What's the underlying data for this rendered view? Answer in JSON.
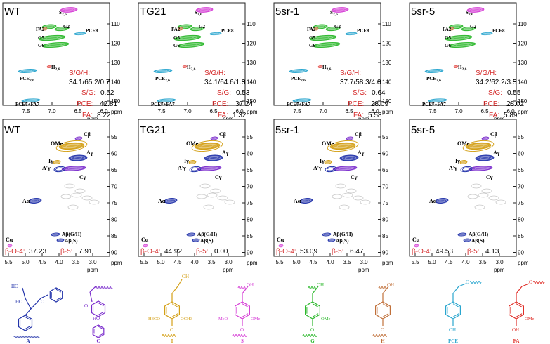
{
  "colors": {
    "s": "#d63fd6",
    "g": "#2db82d",
    "pce": "#2aa6cf",
    "h": "#e0302a",
    "fa": "#c0703a",
    "a": "#2233aa",
    "b": "#7a2ccc",
    "i": "#d4a017",
    "stat": "#d52b2b",
    "grey": "#c8c8c8",
    "frame": "#333333"
  },
  "aromatic": {
    "x_axis": {
      "ticks": [
        "7.5",
        "7.0",
        "6.5",
        "6.0"
      ],
      "label": "ppm"
    },
    "y_axis": {
      "ticks": [
        "110",
        "120",
        "130",
        "140",
        "150"
      ],
      "label": "ppm"
    },
    "labels": {
      "s26": "S2,6",
      "g2": "G2",
      "g5": "G5",
      "g6": "G6",
      "fa2": "FA2",
      "pce8": "PCE8",
      "h26": "H2,6",
      "pce26": "PCE2,6",
      "pce7fa7": "PCE7+FA7"
    },
    "ratio_label": "S/G/H:",
    "sg_label": "S/G:",
    "pce_label": "PCE:",
    "fa_label": "FA:",
    "panels": [
      {
        "title": "WT",
        "sgh": "34.1/65.2/0.7",
        "sg": "0.52",
        "pce": "42.81",
        "fa": "8.22"
      },
      {
        "title": "TG21",
        "sgh": "34.1/64.6/1.3",
        "sg": "0.53",
        "pce": "37.24",
        "fa": "1.32"
      },
      {
        "title": "5sr-1",
        "sgh": "37.7/58.3/4.0",
        "sg": "0.64",
        "pce": "28.09",
        "fa": "5.58"
      },
      {
        "title": "5sr-5",
        "sgh": "34.2/62.2/3.5",
        "sg": "0.55",
        "pce": "28.02",
        "fa": "5.89"
      }
    ]
  },
  "aliphatic": {
    "x_axis": {
      "ticks": [
        "5.5",
        "5.0",
        "4.5",
        "4.0",
        "3.5",
        "3.0"
      ],
      "label": "ppm"
    },
    "y_axis": {
      "ticks": [
        "55",
        "60",
        "65",
        "70",
        "75",
        "80",
        "85",
        "90"
      ],
      "label": "ppm"
    },
    "labels": {
      "cb": "Cβ",
      "ome": "OMe",
      "ag": "Aγ",
      "ig": "Iγ",
      "apg": "A'γ",
      "cg": "Cγ",
      "aa": "Aα",
      "abgh": "Aβ(G/H)",
      "abs": "Aβ(S)",
      "ca": "Cα"
    },
    "bo4_label": "β-O-4:",
    "b5_label": "β-5:",
    "panels": [
      {
        "title": "WT",
        "bo4": "37.23",
        "b5": "7.91"
      },
      {
        "title": "TG21",
        "bo4": "44.92",
        "b5": "0.00"
      },
      {
        "title": "5sr-1",
        "bo4": "53.09",
        "b5": "6.47"
      },
      {
        "title": "5sr-5",
        "bo4": "49.53",
        "b5": "4.13"
      }
    ]
  },
  "structures": [
    {
      "name": "A",
      "caption": "A"
    },
    {
      "name": "C",
      "caption": "C"
    },
    {
      "name": "I",
      "caption": "I"
    },
    {
      "name": "S",
      "caption": "S"
    },
    {
      "name": "G",
      "caption": "G"
    },
    {
      "name": "H",
      "caption": "H"
    },
    {
      "name": "PCE",
      "caption": "PCE"
    },
    {
      "name": "FA",
      "caption": "FA"
    }
  ]
}
